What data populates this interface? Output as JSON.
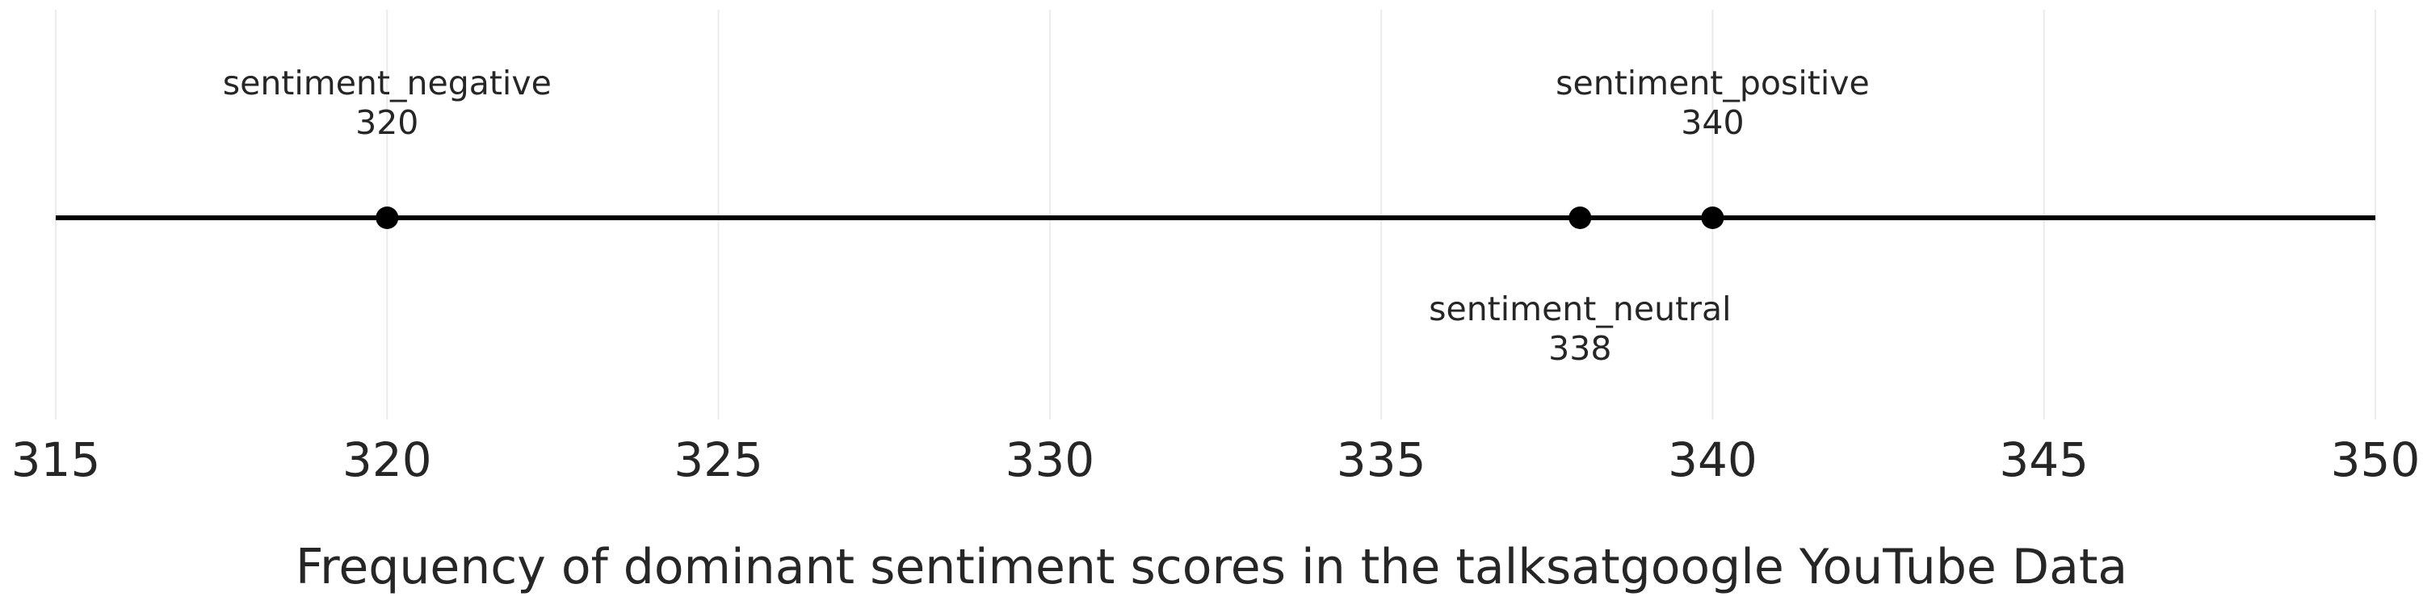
{
  "chart_data": {
    "type": "scatter",
    "title": "",
    "xlabel": "Frequency of dominant sentiment scores in the talksatgoogle YouTube Data",
    "ylabel": "",
    "xlim": [
      315,
      350
    ],
    "xticks": [
      315,
      320,
      325,
      330,
      335,
      340,
      345,
      350
    ],
    "grid": "vertical",
    "legend": "none",
    "points": [
      {
        "label": "sentiment_negative",
        "value": 320,
        "value_label": "320",
        "label_position": "above"
      },
      {
        "label": "sentiment_neutral",
        "value": 338,
        "value_label": "338",
        "label_position": "below"
      },
      {
        "label": "sentiment_positive",
        "value": 340,
        "value_label": "340",
        "label_position": "above"
      }
    ],
    "colors": {
      "line": "#000000",
      "points": "#000000",
      "grid": "#ebebeb",
      "text": "#262626"
    }
  }
}
